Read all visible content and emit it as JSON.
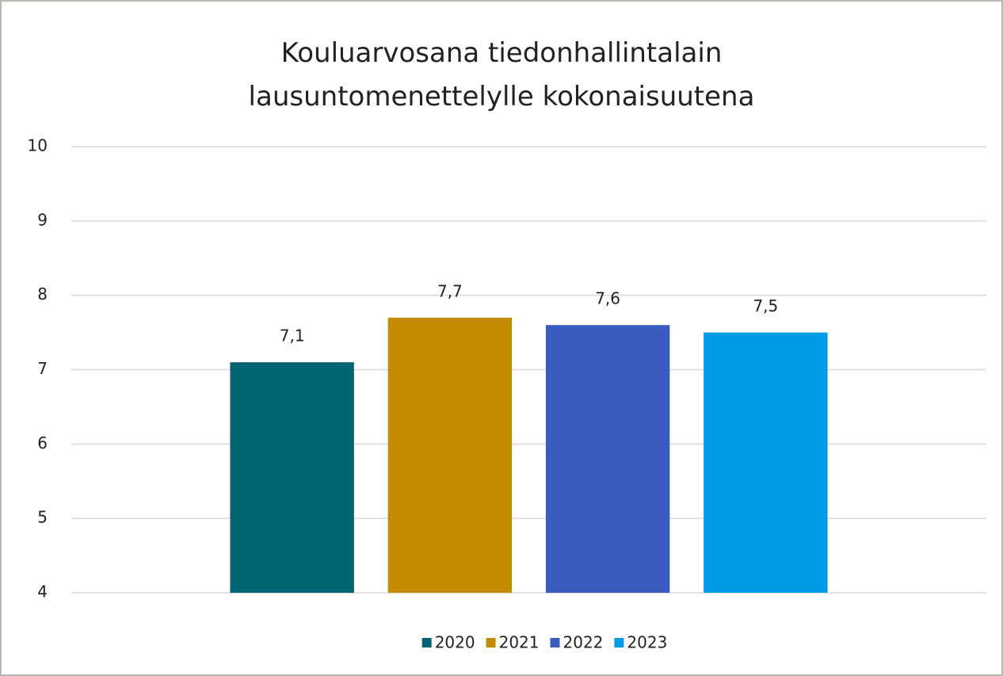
{
  "chart_data": {
    "type": "bar",
    "title": "Kouluarvosana tiedonhallintalain lausuntomenettelylle kokonaisuutena",
    "categories": [
      null
    ],
    "series": [
      {
        "name": "2020",
        "color": "#006472",
        "values": [
          7.1
        ],
        "value_labels": [
          "7,1"
        ]
      },
      {
        "name": "2021",
        "color": "#c48a00",
        "values": [
          7.7
        ],
        "value_labels": [
          "7,7"
        ]
      },
      {
        "name": "2022",
        "color": "#3a5bbf",
        "values": [
          7.6
        ],
        "value_labels": [
          "7,6"
        ]
      },
      {
        "name": "2023",
        "color": "#009be6",
        "values": [
          7.5
        ],
        "value_labels": [
          "7,5"
        ]
      }
    ],
    "ylim": [
      4,
      10
    ],
    "yticks": [
      4,
      5,
      6,
      7,
      8,
      9,
      10
    ],
    "grid": true,
    "legend": "bottom"
  }
}
